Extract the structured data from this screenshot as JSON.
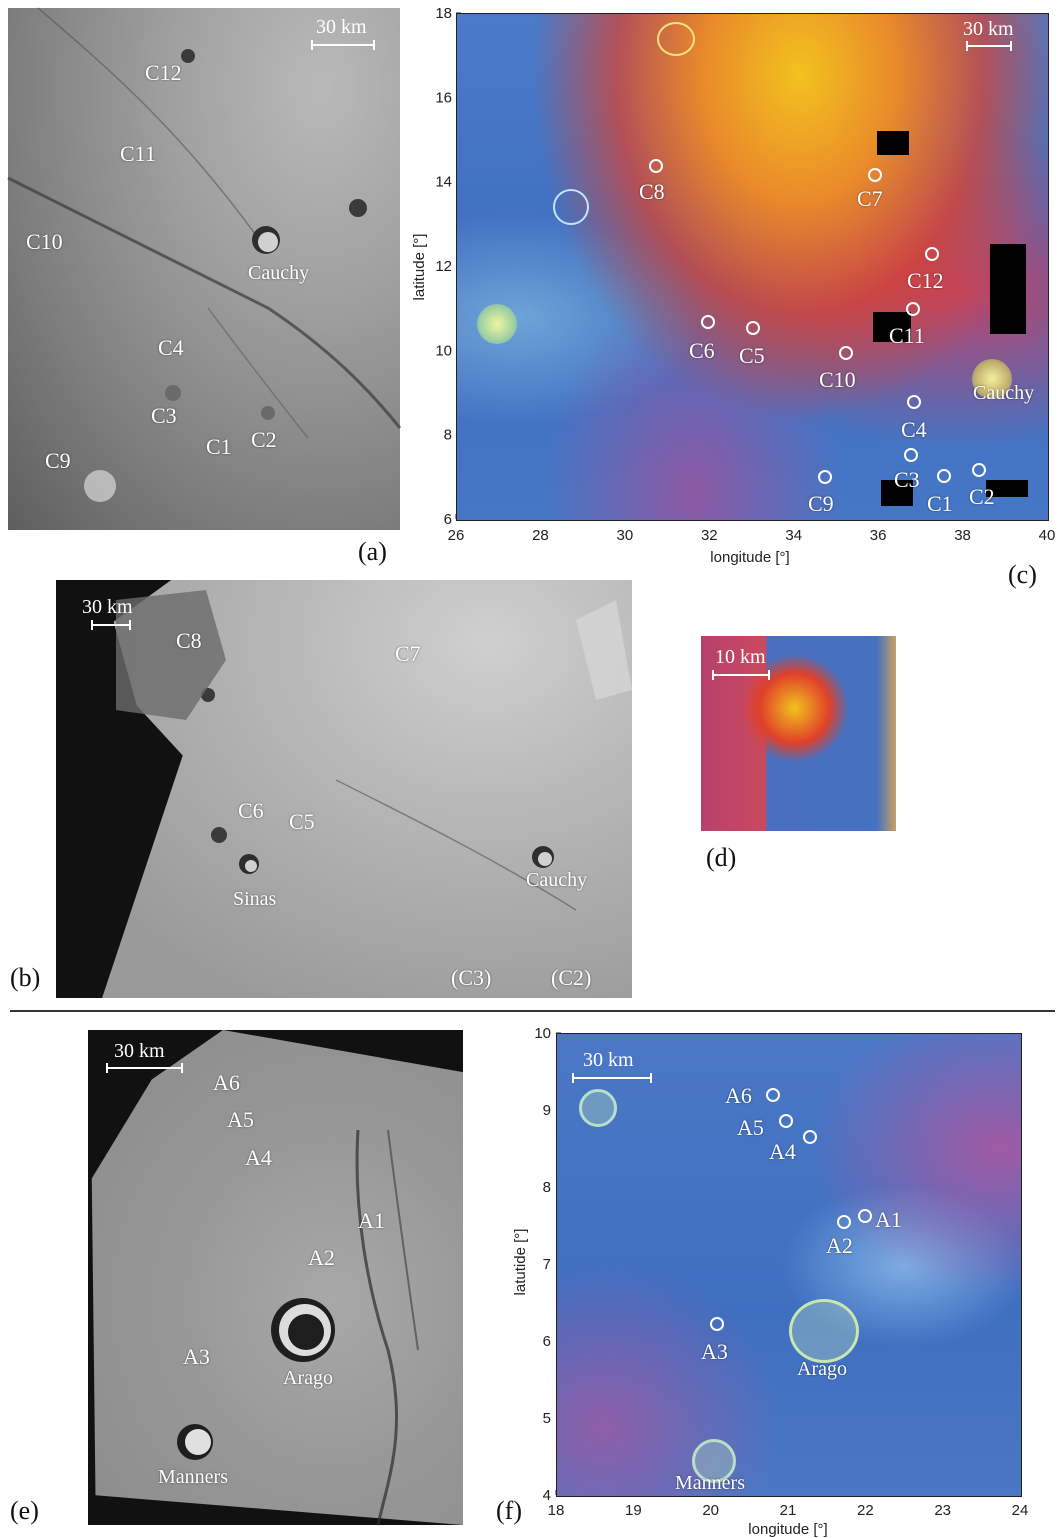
{
  "panels": {
    "a": {
      "letter": "(a)",
      "scale": "30 km",
      "labels": [
        "C12",
        "C11",
        "C10",
        "Cauchy",
        "C4",
        "C3",
        "C1",
        "C2",
        "C9"
      ]
    },
    "b": {
      "letter": "(b)",
      "scale": "30 km",
      "labels": [
        "C8",
        "C7",
        "C6",
        "C5",
        "Sinas",
        "Cauchy",
        "(C3)",
        "(C2)"
      ]
    },
    "c": {
      "letter": "(c)",
      "scale": "30 km",
      "labels": [
        "C8",
        "C7",
        "C12",
        "C11",
        "C6",
        "C5",
        "C10",
        "Cauchy",
        "C4",
        "C3",
        "C9",
        "C1",
        "C2"
      ],
      "xlabel": "longitude [°]",
      "ylabel": "latitude [°]",
      "xticks": [
        "26",
        "28",
        "30",
        "32",
        "34",
        "36",
        "38",
        "40"
      ],
      "yticks": [
        "6",
        "8",
        "10",
        "12",
        "14",
        "16",
        "18"
      ]
    },
    "d": {
      "letter": "(d)",
      "scale": "10 km"
    },
    "e": {
      "letter": "(e)",
      "scale": "30 km",
      "labels": [
        "A6",
        "A5",
        "A4",
        "A1",
        "A2",
        "A3",
        "Arago",
        "Manners"
      ]
    },
    "f": {
      "letter": "(f)",
      "scale": "30 km",
      "labels": [
        "A6",
        "A5",
        "A4",
        "A1",
        "A2",
        "A3",
        "Arago",
        "Manners"
      ],
      "xlabel": "longitude [°]",
      "ylabel": "latutide [°]",
      "xticks": [
        "18",
        "19",
        "20",
        "21",
        "22",
        "23",
        "24"
      ],
      "yticks": [
        "4",
        "5",
        "6",
        "7",
        "8",
        "9",
        "10"
      ]
    }
  },
  "colors": {
    "mare_gray": "#8a8a8a",
    "mare_blue": "#3f6fc0",
    "hot_red": "#e0402a",
    "hot_yellow": "#f2c21e"
  }
}
